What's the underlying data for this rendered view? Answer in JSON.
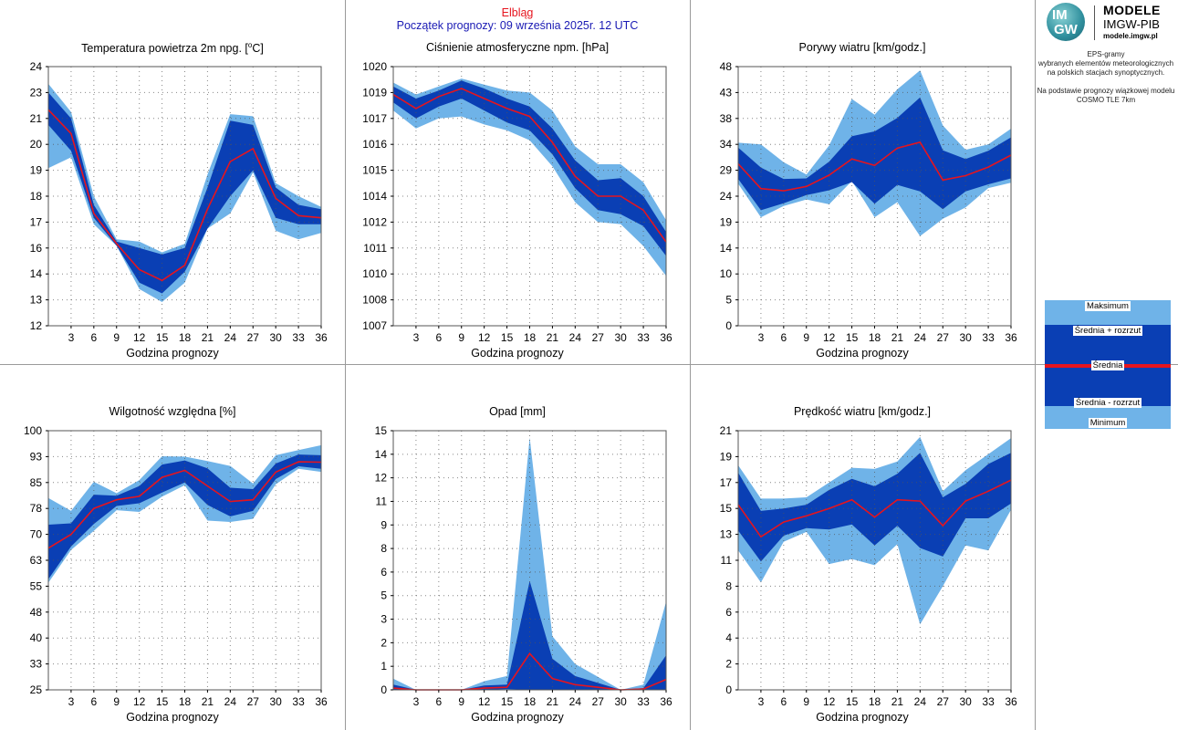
{
  "header": {
    "station": "Elbląg",
    "forecast_start": "Początek prognozy: 09 września 2025r. 12 UTC"
  },
  "logo": {
    "mark_top": "IM",
    "mark_bottom": "GW",
    "title": "MODELE",
    "subtitle": "IMGW-PIB",
    "url": "modele.imgw.pl"
  },
  "description": {
    "line1": "EPS-gramy",
    "line2": "wybranych elementów meteorologicznych",
    "line3": "na polskich stacjach  synoptycznych.",
    "line4": "Na podstawie prognozy wiązkowej modelu",
    "line5": "COSMO TLE 7km"
  },
  "legend": {
    "max": "Maksimum",
    "mean_plus": "Średnia + rozrzut",
    "mean": "Średnia",
    "mean_minus": "Średnia - rozrzut",
    "min": "Minimum"
  },
  "colors": {
    "outer_band": "#6fb3e8",
    "inner_band": "#0a3fb4",
    "mean_line": "#e6141e",
    "title_station": "#e6141e",
    "title_start": "#1a1ab4"
  },
  "chart_data": [
    {
      "id": "temp",
      "type": "area",
      "title": "Temperatura powietrza 2m npg. [",
      "title_sup": "o",
      "title_end": "C]",
      "xlabel": "Godzina prognozy",
      "x": [
        0,
        3,
        6,
        9,
        12,
        15,
        18,
        21,
        24,
        27,
        30,
        33,
        36
      ],
      "xticks": [
        "3",
        "6",
        "9",
        "12",
        "15",
        "18",
        "21",
        "24",
        "27",
        "30",
        "33",
        "36"
      ],
      "ylim": [
        12,
        24
      ],
      "yticks": [
        "12",
        "13",
        "14",
        "16",
        "17",
        "18",
        "19",
        "20",
        "21",
        "23",
        "24"
      ],
      "series": {
        "max": [
          23.2,
          21.9,
          18.0,
          16.0,
          15.9,
          15.4,
          15.8,
          19.0,
          21.8,
          21.7,
          18.6,
          18.0,
          17.5
        ],
        "mean_plus": [
          22.8,
          21.6,
          17.6,
          15.9,
          15.6,
          15.3,
          15.6,
          18.4,
          21.5,
          21.3,
          18.4,
          17.6,
          17.4
        ],
        "mean": [
          22.0,
          20.9,
          17.2,
          15.8,
          14.6,
          14.1,
          14.8,
          17.4,
          19.6,
          20.2,
          17.9,
          17.1,
          17.0
        ],
        "mean_minus": [
          21.3,
          20.1,
          17.0,
          15.7,
          14.0,
          13.5,
          14.5,
          16.5,
          18.0,
          19.2,
          17.0,
          16.7,
          16.7
        ],
        "min": [
          19.3,
          19.8,
          16.7,
          15.7,
          13.7,
          13.1,
          14.0,
          16.5,
          17.2,
          19.1,
          16.4,
          16.0,
          16.3
        ]
      }
    },
    {
      "id": "pressure",
      "type": "area",
      "title": "Ciśnienie atmosferyczne npm. [hPa]",
      "xlabel": "Godzina prognozy",
      "x": [
        0,
        3,
        6,
        9,
        12,
        15,
        18,
        21,
        24,
        27,
        30,
        33,
        36
      ],
      "xticks": [
        "3",
        "6",
        "9",
        "12",
        "15",
        "18",
        "21",
        "24",
        "27",
        "30",
        "33",
        "36"
      ],
      "ylim": [
        1007,
        1020
      ],
      "yticks": [
        "1007",
        "1008",
        "1010",
        "1011",
        "1012",
        "1014",
        "1015",
        "1016",
        "1017",
        "1019",
        "1020"
      ],
      "series": {
        "max": [
          1019.2,
          1018.6,
          1019.0,
          1019.4,
          1019.1,
          1018.8,
          1018.7,
          1017.8,
          1016.0,
          1015.1,
          1015.1,
          1014.2,
          1012.3
        ],
        "mean_plus": [
          1019.0,
          1018.4,
          1018.8,
          1019.3,
          1018.9,
          1018.4,
          1018.0,
          1016.9,
          1015.3,
          1014.3,
          1014.4,
          1013.5,
          1011.7
        ],
        "mean": [
          1018.6,
          1017.9,
          1018.5,
          1018.9,
          1018.4,
          1017.9,
          1017.5,
          1016.2,
          1014.5,
          1013.5,
          1013.5,
          1012.8,
          1011.2
        ],
        "mean_minus": [
          1018.2,
          1017.4,
          1018.0,
          1018.4,
          1017.8,
          1017.2,
          1016.8,
          1015.6,
          1013.9,
          1012.8,
          1012.6,
          1012.0,
          1010.5
        ],
        "min": [
          1017.8,
          1016.9,
          1017.4,
          1017.5,
          1017.1,
          1016.8,
          1016.3,
          1015.0,
          1013.2,
          1012.2,
          1012.1,
          1011.0,
          1009.5
        ]
      }
    },
    {
      "id": "gusts",
      "type": "area",
      "title": "Porywy wiatru [km/godz.]",
      "xlabel": "Godzina prognozy",
      "x": [
        0,
        3,
        6,
        9,
        12,
        15,
        18,
        21,
        24,
        27,
        30,
        33,
        36
      ],
      "xticks": [
        "3",
        "6",
        "9",
        "12",
        "15",
        "18",
        "21",
        "24",
        "27",
        "30",
        "33",
        "36"
      ],
      "ylim": [
        0,
        48
      ],
      "yticks": [
        "0",
        "5",
        "10",
        "14",
        "19",
        "24",
        "29",
        "34",
        "38",
        "43",
        "48"
      ],
      "series": {
        "max": [
          33.9,
          33.6,
          30.3,
          28.0,
          33.4,
          42.0,
          39.1,
          43.8,
          47.3,
          37.1,
          32.6,
          33.6,
          36.5
        ],
        "mean_plus": [
          33.0,
          29.3,
          27.2,
          27.3,
          30.4,
          35.1,
          36.0,
          38.5,
          42.3,
          32.5,
          30.9,
          32.4,
          34.9
        ],
        "mean": [
          30.0,
          25.4,
          25.0,
          25.8,
          27.9,
          30.9,
          29.7,
          32.9,
          34.0,
          27.0,
          27.8,
          29.4,
          31.6
        ],
        "mean_minus": [
          27.2,
          21.4,
          22.7,
          24.2,
          25.1,
          26.6,
          22.6,
          26.1,
          24.9,
          21.6,
          24.9,
          26.2,
          27.3
        ],
        "min": [
          26.3,
          20.1,
          22.2,
          23.4,
          22.5,
          26.8,
          20.1,
          22.9,
          16.6,
          19.8,
          21.9,
          25.5,
          26.5
        ]
      }
    },
    {
      "id": "humidity",
      "type": "area",
      "title": "Wilgotność względna [%]",
      "xlabel": "Godzina prognozy",
      "x": [
        0,
        3,
        6,
        9,
        12,
        15,
        18,
        21,
        24,
        27,
        30,
        33,
        36
      ],
      "xticks": [
        "3",
        "6",
        "9",
        "12",
        "15",
        "18",
        "21",
        "24",
        "27",
        "30",
        "33",
        "36"
      ],
      "ylim": [
        25,
        100
      ],
      "yticks": [
        "25",
        "33",
        "40",
        "48",
        "55",
        "63",
        "70",
        "78",
        "85",
        "93",
        "100"
      ],
      "series": {
        "max": [
          80.5,
          76.8,
          85.2,
          81.9,
          85.7,
          92.6,
          92.5,
          91.2,
          89.8,
          84.7,
          92.9,
          94.4,
          95.8
        ],
        "mean_plus": [
          72.8,
          73.2,
          81.5,
          81.2,
          84.0,
          90.2,
          91.4,
          89.1,
          83.5,
          83.1,
          90.5,
          93.1,
          92.9
        ],
        "mean": [
          66.0,
          70.0,
          77.5,
          80.0,
          81.0,
          86.5,
          88.5,
          84.0,
          79.5,
          80.0,
          88.0,
          91.0,
          90.9
        ],
        "mean_minus": [
          57.0,
          66.5,
          73.0,
          78.2,
          79.0,
          82.1,
          85.0,
          78.5,
          75.2,
          76.8,
          86.0,
          89.7,
          89.0
        ],
        "min": [
          56.0,
          65.5,
          71.0,
          77.0,
          76.5,
          80.9,
          84.2,
          74.0,
          73.6,
          74.5,
          84.5,
          89.0,
          88.1
        ]
      }
    },
    {
      "id": "precip",
      "type": "area",
      "title": "Opad [mm]",
      "xlabel": "Godzina prognozy",
      "x": [
        0,
        3,
        6,
        9,
        12,
        15,
        18,
        21,
        24,
        27,
        30,
        33,
        36
      ],
      "xticks": [
        "3",
        "6",
        "9",
        "12",
        "15",
        "18",
        "21",
        "24",
        "27",
        "30",
        "33",
        "36"
      ],
      "ylim": [
        0,
        15
      ],
      "yticks": [
        "0",
        "1",
        "2",
        "3",
        "5",
        "6",
        "8",
        "9",
        "11",
        "12",
        "14",
        "15"
      ],
      "series": {
        "max": [
          0.65,
          0.0,
          0.0,
          0.0,
          0.5,
          0.8,
          14.6,
          3.1,
          1.5,
          0.75,
          0.0,
          0.3,
          5.1
        ],
        "mean_plus": [
          0.3,
          0.0,
          0.0,
          0.0,
          0.25,
          0.3,
          6.3,
          1.8,
          0.8,
          0.4,
          0.0,
          0.1,
          2.0
        ],
        "mean": [
          0.1,
          0.0,
          0.0,
          0.0,
          0.1,
          0.15,
          2.1,
          0.65,
          0.3,
          0.15,
          0.0,
          0.05,
          0.6
        ],
        "mean_minus": [
          0.0,
          0.0,
          0.0,
          0.0,
          0.0,
          0.05,
          0.0,
          0.0,
          0.0,
          0.0,
          0.0,
          0.0,
          0.0
        ],
        "min": [
          0.0,
          0.0,
          0.0,
          0.0,
          0.0,
          0.0,
          0.0,
          0.0,
          0.0,
          0.0,
          0.0,
          0.0,
          0.0
        ]
      }
    },
    {
      "id": "wind",
      "type": "area",
      "title": "Prędkość wiatru [km/godz.]",
      "xlabel": "Godzina prognozy",
      "x": [
        0,
        3,
        6,
        9,
        12,
        15,
        18,
        21,
        24,
        27,
        30,
        33,
        36
      ],
      "xticks": [
        "3",
        "6",
        "9",
        "12",
        "15",
        "18",
        "21",
        "24",
        "27",
        "30",
        "33",
        "36"
      ],
      "ylim": [
        0,
        21
      ],
      "yticks": [
        "0",
        "2",
        "4",
        "6",
        "8",
        "11",
        "13",
        "15",
        "17",
        "19",
        "21"
      ],
      "series": {
        "max": [
          18.2,
          15.5,
          15.5,
          15.6,
          16.8,
          18.0,
          17.9,
          18.5,
          20.5,
          16.1,
          17.8,
          19.1,
          20.4
        ],
        "mean_plus": [
          17.6,
          14.5,
          14.7,
          15.0,
          16.2,
          17.1,
          16.5,
          17.5,
          19.2,
          15.6,
          16.7,
          18.3,
          19.2
        ],
        "mean": [
          15.0,
          12.4,
          13.6,
          14.1,
          14.7,
          15.4,
          14.0,
          15.4,
          15.3,
          13.3,
          15.3,
          16.1,
          17.0
        ],
        "mean_minus": [
          12.9,
          10.4,
          12.5,
          13.1,
          13.0,
          13.4,
          11.7,
          13.3,
          11.5,
          10.8,
          13.9,
          13.9,
          15.1
        ],
        "min": [
          11.3,
          8.7,
          12.0,
          12.8,
          10.2,
          10.6,
          10.1,
          11.8,
          5.3,
          8.4,
          11.7,
          11.3,
          14.6
        ]
      }
    }
  ]
}
